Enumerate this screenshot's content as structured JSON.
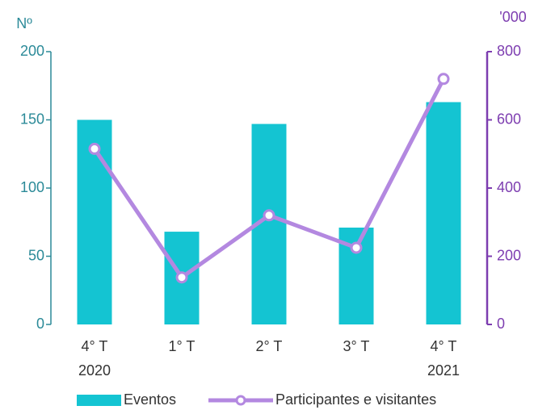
{
  "chart_data": {
    "type": "bar_line",
    "y_label": "Nº",
    "y2_label": "'000",
    "categories": [
      "4° T",
      "1° T",
      "2° T",
      "3° T",
      "4° T"
    ],
    "category_years": [
      "2020",
      null,
      null,
      null,
      "2021"
    ],
    "series": [
      {
        "name": "Eventos",
        "type": "bar",
        "color": "#14c4d2",
        "values": [
          150,
          68,
          147,
          71,
          163
        ]
      },
      {
        "name": "Participantes e visitantes",
        "type": "line",
        "axis": "y2",
        "color": "#b388e0",
        "values": [
          515,
          138,
          320,
          225,
          720
        ]
      }
    ],
    "ylim": [
      0,
      200
    ],
    "yticks": [
      0,
      50,
      100,
      150,
      200
    ],
    "y2lim": [
      0,
      800
    ],
    "y2ticks": [
      0,
      200,
      400,
      600,
      800
    ],
    "y_color": "#2b8a98",
    "y2_color": "#7d3db0"
  }
}
